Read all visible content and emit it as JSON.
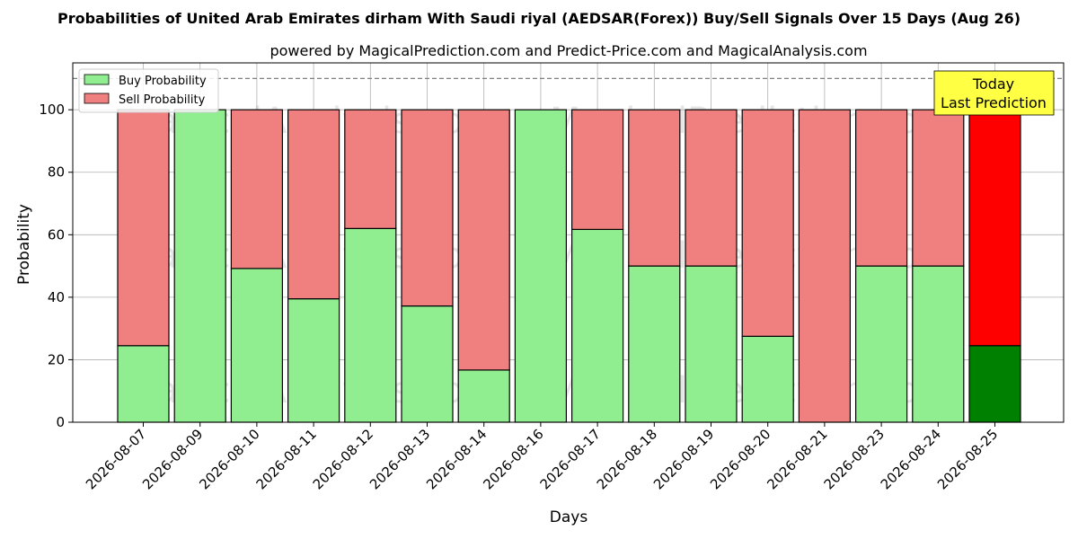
{
  "chart_data": {
    "type": "bar",
    "stacked": true,
    "title": "Probabilities of United Arab Emirates dirham With Saudi riyal (AEDSAR(Forex)) Buy/Sell Signals Over 15 Days (Aug 26)",
    "subtitle": "powered by MagicalPrediction.com and Predict-Price.com and MagicalAnalysis.com",
    "xlabel": "Days",
    "ylabel": "Probability",
    "ylim": [
      0,
      115
    ],
    "yticks": [
      0,
      20,
      40,
      60,
      80,
      100
    ],
    "grid": true,
    "legend_position": "top-left",
    "reference_line": 110,
    "categories": [
      "2026-08-07",
      "2026-08-09",
      "2026-08-10",
      "2026-08-11",
      "2026-08-12",
      "2026-08-13",
      "2026-08-14",
      "2026-08-16",
      "2026-08-17",
      "2026-08-18",
      "2026-08-19",
      "2026-08-20",
      "2026-08-21",
      "2026-08-23",
      "2026-08-24",
      "2026-08-25"
    ],
    "series": [
      {
        "name": "Buy Probability",
        "color": "#90ee90",
        "highlight_color": "#008000",
        "values": [
          24.5,
          100,
          49.2,
          39.5,
          62,
          37.2,
          16.7,
          100,
          61.7,
          50,
          50,
          27.5,
          0,
          50,
          50,
          24.5
        ]
      },
      {
        "name": "Sell Probability",
        "color": "#f08080",
        "highlight_color": "#ff0000",
        "values": [
          75.5,
          0,
          50.8,
          60.5,
          38,
          62.8,
          83.3,
          0,
          38.3,
          50,
          50,
          72.5,
          100,
          50,
          50,
          75.5
        ]
      }
    ],
    "highlight_index": 15,
    "annotation": {
      "lines": [
        "Today",
        "Last Prediction"
      ],
      "background": "#ffff44"
    },
    "watermarks": [
      "MagicalAnalysis.com",
      "MagicalPrediction.com"
    ]
  }
}
